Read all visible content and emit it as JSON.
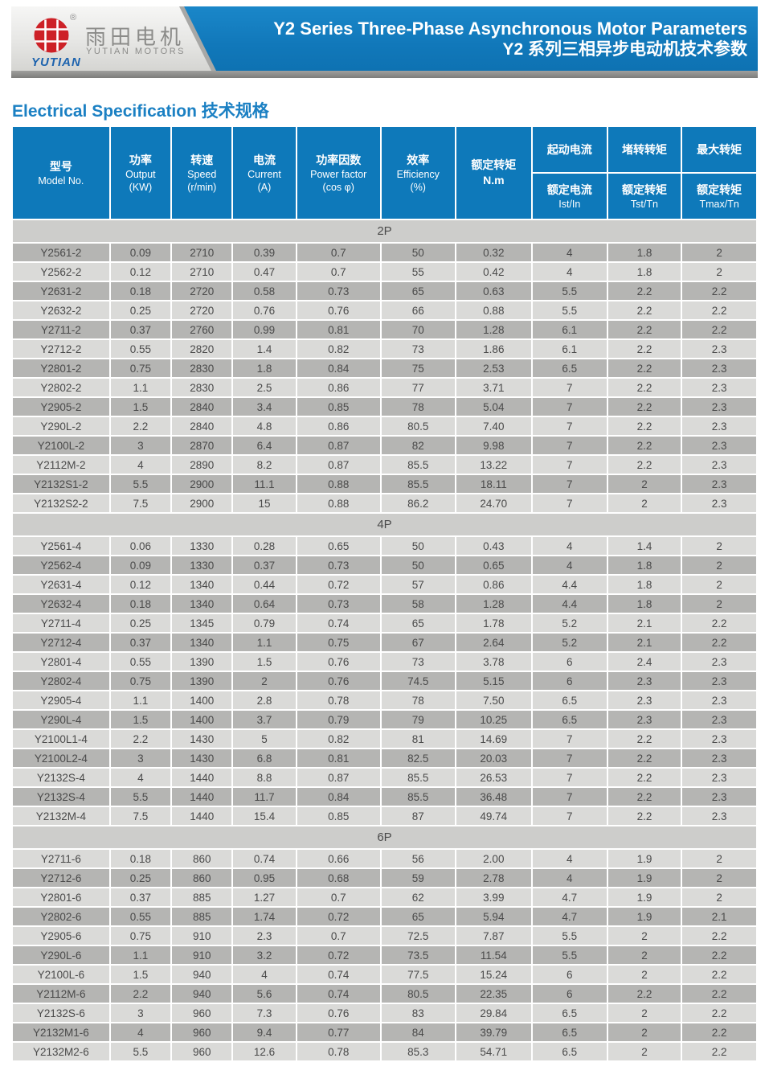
{
  "header": {
    "logo": {
      "registered_mark": "®",
      "brand_cn": "雨田电机",
      "brand_en": "YUTIAN MOTORS",
      "brand_script": "YUTIAN",
      "logo_red": "#cd2127",
      "script_blue": "#1d63ae"
    },
    "banner": {
      "title_en": "Y2 Series Three-Phase Asynchronous Motor Parameters",
      "title_cn": "Y2 系列三相异步电动机技术参数",
      "banner_blue": "#1178ba"
    }
  },
  "spec_heading": "Electrical Specification 技术规格",
  "table": {
    "header_blue": "#0e79ba",
    "row_dark": "#b5b5b3",
    "row_light": "#dadad8",
    "section_gray": "#cdcdcb",
    "columns": [
      {
        "cn": "型号",
        "en": "Model No."
      },
      {
        "cn": "功率",
        "en": "Output",
        "unit": "(KW)"
      },
      {
        "cn": "转速",
        "en": "Speed",
        "unit": "(r/min)"
      },
      {
        "cn": "电流",
        "en": "Current",
        "unit": "(A)"
      },
      {
        "cn": "功率因数",
        "en": "Power factor",
        "unit": "(cos φ)"
      },
      {
        "cn": "效率",
        "en": "Efficiency",
        "unit": "(%)"
      },
      {
        "cn": "额定转矩",
        "en": "N.m"
      }
    ],
    "split_columns": [
      {
        "top": "起动电流",
        "bottom_cn": "额定电流",
        "bottom_en": "Ist/In"
      },
      {
        "top": "堵转转矩",
        "bottom_cn": "额定转矩",
        "bottom_en": "Tst/Tn"
      },
      {
        "top": "最大转矩",
        "bottom_cn": "额定转矩",
        "bottom_en": "Tmax/Tn"
      }
    ],
    "sections": [
      {
        "label": "2P",
        "first_row_dark": true,
        "rows": [
          [
            "Y2561-2",
            "0.09",
            "2710",
            "0.39",
            "0.7",
            "50",
            "0.32",
            "4",
            "1.8",
            "2"
          ],
          [
            "Y2562-2",
            "0.12",
            "2710",
            "0.47",
            "0.7",
            "55",
            "0.42",
            "4",
            "1.8",
            "2"
          ],
          [
            "Y2631-2",
            "0.18",
            "2720",
            "0.58",
            "0.73",
            "65",
            "0.63",
            "5.5",
            "2.2",
            "2.2"
          ],
          [
            "Y2632-2",
            "0.25",
            "2720",
            "0.76",
            "0.76",
            "66",
            "0.88",
            "5.5",
            "2.2",
            "2.2"
          ],
          [
            "Y2711-2",
            "0.37",
            "2760",
            "0.99",
            "0.81",
            "70",
            "1.28",
            "6.1",
            "2.2",
            "2.2"
          ],
          [
            "Y2712-2",
            "0.55",
            "2820",
            "1.4",
            "0.82",
            "73",
            "1.86",
            "6.1",
            "2.2",
            "2.3"
          ],
          [
            "Y2801-2",
            "0.75",
            "2830",
            "1.8",
            "0.84",
            "75",
            "2.53",
            "6.5",
            "2.2",
            "2.3"
          ],
          [
            "Y2802-2",
            "1.1",
            "2830",
            "2.5",
            "0.86",
            "77",
            "3.71",
            "7",
            "2.2",
            "2.3"
          ],
          [
            "Y2905-2",
            "1.5",
            "2840",
            "3.4",
            "0.85",
            "78",
            "5.04",
            "7",
            "2.2",
            "2.3"
          ],
          [
            "Y290L-2",
            "2.2",
            "2840",
            "4.8",
            "0.86",
            "80.5",
            "7.40",
            "7",
            "2.2",
            "2.3"
          ],
          [
            "Y2100L-2",
            "3",
            "2870",
            "6.4",
            "0.87",
            "82",
            "9.98",
            "7",
            "2.2",
            "2.3"
          ],
          [
            "Y2112M-2",
            "4",
            "2890",
            "8.2",
            "0.87",
            "85.5",
            "13.22",
            "7",
            "2.2",
            "2.3"
          ],
          [
            "Y2132S1-2",
            "5.5",
            "2900",
            "11.1",
            "0.88",
            "85.5",
            "18.11",
            "7",
            "2",
            "2.3"
          ],
          [
            "Y2132S2-2",
            "7.5",
            "2900",
            "15",
            "0.88",
            "86.2",
            "24.70",
            "7",
            "2",
            "2.3"
          ]
        ]
      },
      {
        "label": "4P",
        "first_row_dark": false,
        "rows": [
          [
            "Y2561-4",
            "0.06",
            "1330",
            "0.28",
            "0.65",
            "50",
            "0.43",
            "4",
            "1.4",
            "2"
          ],
          [
            "Y2562-4",
            "0.09",
            "1330",
            "0.37",
            "0.73",
            "50",
            "0.65",
            "4",
            "1.8",
            "2"
          ],
          [
            "Y2631-4",
            "0.12",
            "1340",
            "0.44",
            "0.72",
            "57",
            "0.86",
            "4.4",
            "1.8",
            "2"
          ],
          [
            "Y2632-4",
            "0.18",
            "1340",
            "0.64",
            "0.73",
            "58",
            "1.28",
            "4.4",
            "1.8",
            "2"
          ],
          [
            "Y2711-4",
            "0.25",
            "1345",
            "0.79",
            "0.74",
            "65",
            "1.78",
            "5.2",
            "2.1",
            "2.2"
          ],
          [
            "Y2712-4",
            "0.37",
            "1340",
            "1.1",
            "0.75",
            "67",
            "2.64",
            "5.2",
            "2.1",
            "2.2"
          ],
          [
            "Y2801-4",
            "0.55",
            "1390",
            "1.5",
            "0.76",
            "73",
            "3.78",
            "6",
            "2.4",
            "2.3"
          ],
          [
            "Y2802-4",
            "0.75",
            "1390",
            "2",
            "0.76",
            "74.5",
            "5.15",
            "6",
            "2.3",
            "2.3"
          ],
          [
            "Y2905-4",
            "1.1",
            "1400",
            "2.8",
            "0.78",
            "78",
            "7.50",
            "6.5",
            "2.3",
            "2.3"
          ],
          [
            "Y290L-4",
            "1.5",
            "1400",
            "3.7",
            "0.79",
            "79",
            "10.25",
            "6.5",
            "2.3",
            "2.3"
          ],
          [
            "Y2100L1-4",
            "2.2",
            "1430",
            "5",
            "0.82",
            "81",
            "14.69",
            "7",
            "2.2",
            "2.3"
          ],
          [
            "Y2100L2-4",
            "3",
            "1430",
            "6.8",
            "0.81",
            "82.5",
            "20.03",
            "7",
            "2.2",
            "2.3"
          ],
          [
            "Y2132S-4",
            "4",
            "1440",
            "8.8",
            "0.87",
            "85.5",
            "26.53",
            "7",
            "2.2",
            "2.3"
          ],
          [
            "Y2132S-4",
            "5.5",
            "1440",
            "11.7",
            "0.84",
            "85.5",
            "36.48",
            "7",
            "2.2",
            "2.3"
          ],
          [
            "Y2132M-4",
            "7.5",
            "1440",
            "15.4",
            "0.85",
            "87",
            "49.74",
            "7",
            "2.2",
            "2.3"
          ]
        ]
      },
      {
        "label": "6P",
        "first_row_dark": false,
        "rows": [
          [
            "Y2711-6",
            "0.18",
            "860",
            "0.74",
            "0.66",
            "56",
            "2.00",
            "4",
            "1.9",
            "2"
          ],
          [
            "Y2712-6",
            "0.25",
            "860",
            "0.95",
            "0.68",
            "59",
            "2.78",
            "4",
            "1.9",
            "2"
          ],
          [
            "Y2801-6",
            "0.37",
            "885",
            "1.27",
            "0.7",
            "62",
            "3.99",
            "4.7",
            "1.9",
            "2"
          ],
          [
            "Y2802-6",
            "0.55",
            "885",
            "1.74",
            "0.72",
            "65",
            "5.94",
            "4.7",
            "1.9",
            "2.1"
          ],
          [
            "Y2905-6",
            "0.75",
            "910",
            "2.3",
            "0.7",
            "72.5",
            "7.87",
            "5.5",
            "2",
            "2.2"
          ],
          [
            "Y290L-6",
            "1.1",
            "910",
            "3.2",
            "0.72",
            "73.5",
            "11.54",
            "5.5",
            "2",
            "2.2"
          ],
          [
            "Y2100L-6",
            "1.5",
            "940",
            "4",
            "0.74",
            "77.5",
            "15.24",
            "6",
            "2",
            "2.2"
          ],
          [
            "Y2112M-6",
            "2.2",
            "940",
            "5.6",
            "0.74",
            "80.5",
            "22.35",
            "6",
            "2.2",
            "2.2"
          ],
          [
            "Y2132S-6",
            "3",
            "960",
            "7.3",
            "0.76",
            "83",
            "29.84",
            "6.5",
            "2",
            "2.2"
          ],
          [
            "Y2132M1-6",
            "4",
            "960",
            "9.4",
            "0.77",
            "84",
            "39.79",
            "6.5",
            "2",
            "2.2"
          ],
          [
            "Y2132M2-6",
            "5.5",
            "960",
            "12.6",
            "0.78",
            "85.3",
            "54.71",
            "6.5",
            "2",
            "2.2"
          ]
        ]
      }
    ]
  }
}
